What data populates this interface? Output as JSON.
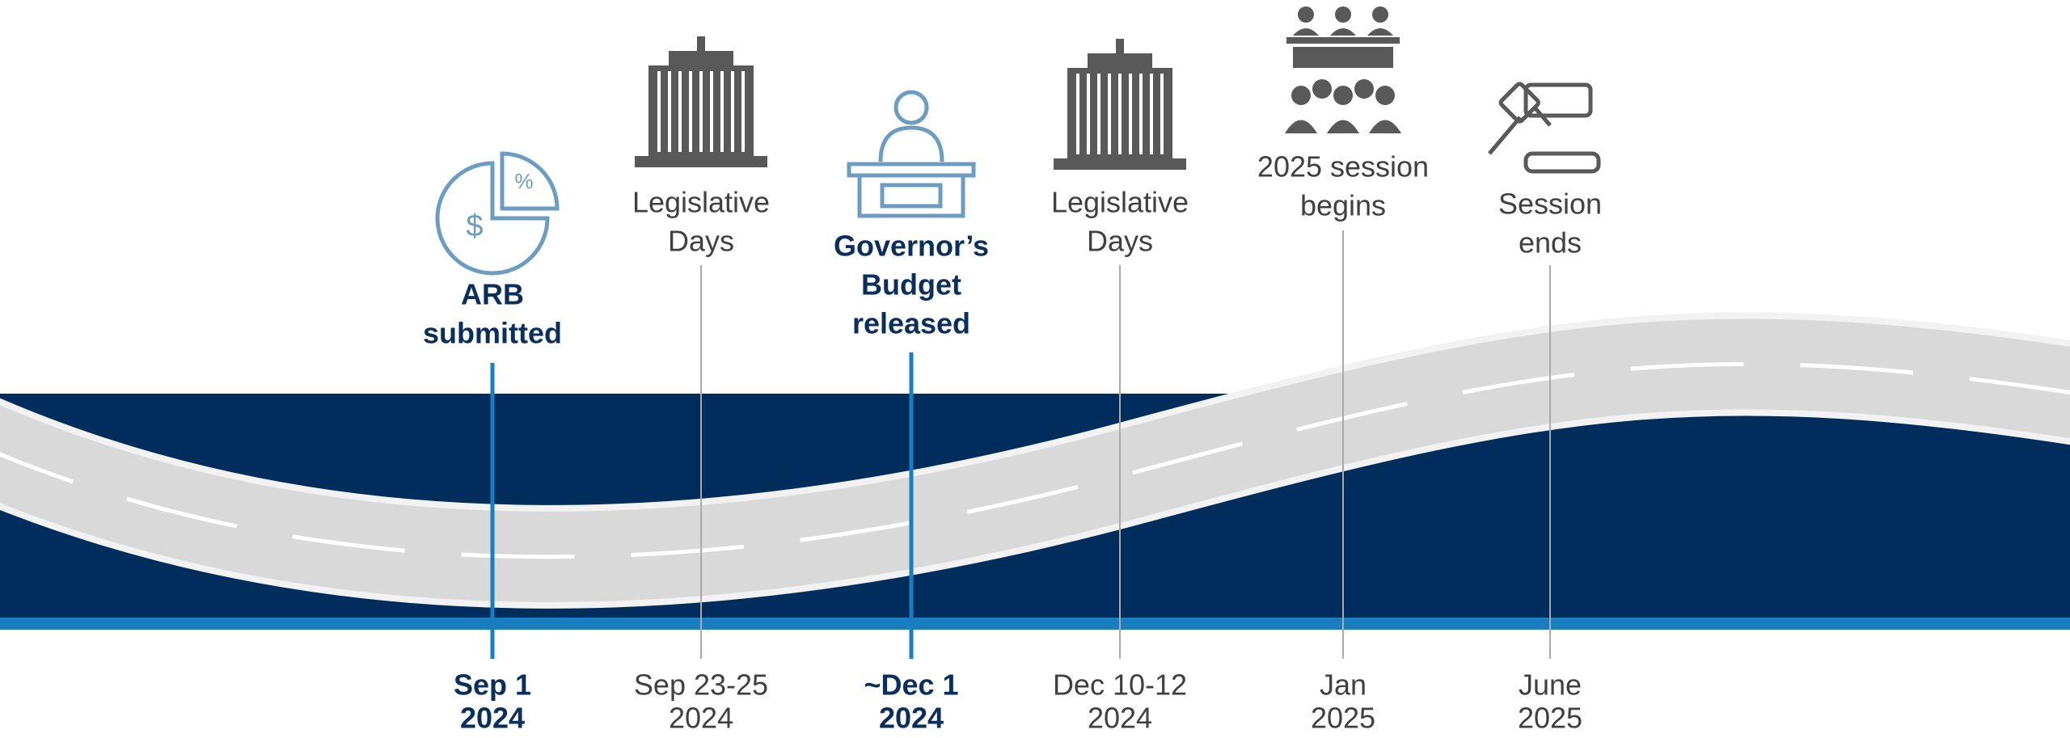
{
  "milestones": [
    {
      "label": [
        "ARB",
        "submitted"
      ],
      "date": [
        "Sep 1",
        "2024"
      ]
    },
    {
      "label": [
        "Legislative",
        "Days"
      ],
      "date": [
        "Sep 23-25",
        "2024"
      ]
    },
    {
      "label": [
        "Governor’s",
        "Budget",
        "released"
      ],
      "date": [
        "~Dec 1",
        "2024"
      ]
    },
    {
      "label": [
        "Legislative",
        "Days"
      ],
      "date": [
        "Dec 10-12",
        "2024"
      ]
    },
    {
      "label": [
        "2025 session",
        "begins"
      ],
      "date": [
        "Jan",
        "2025"
      ]
    },
    {
      "label": [
        "Session",
        "ends"
      ],
      "date": [
        "June",
        "2025"
      ]
    }
  ]
}
